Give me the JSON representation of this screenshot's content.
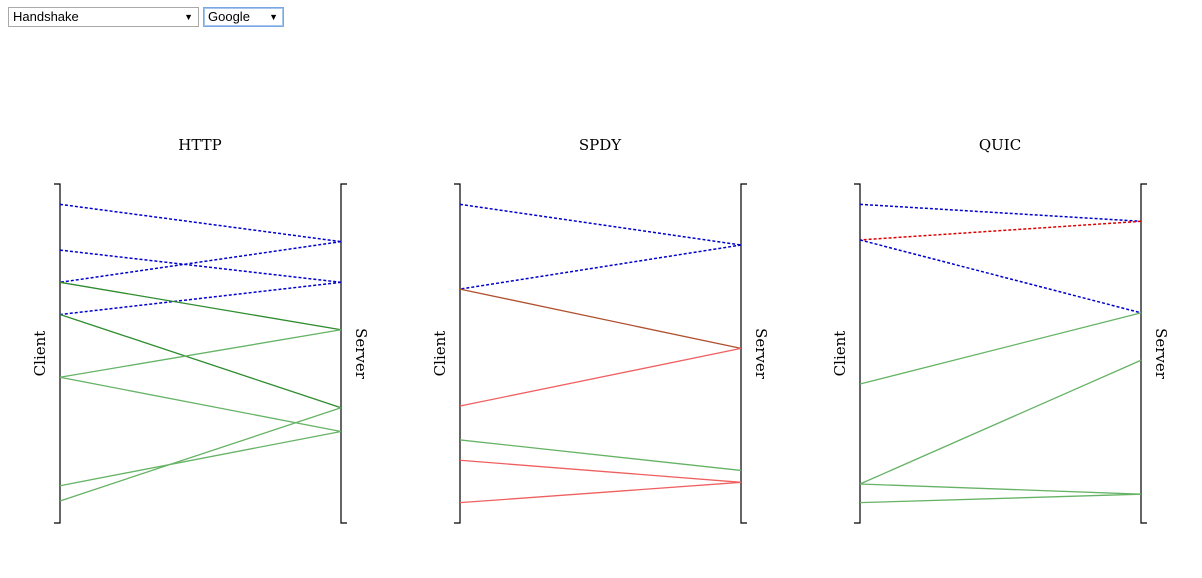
{
  "controls": {
    "view_select": {
      "value": "Handshake"
    },
    "site_select": {
      "value": "Google"
    }
  },
  "panels": [
    {
      "title": "HTTP",
      "client_label": "Client",
      "server_label": "Server",
      "messages": [
        {
          "from": "client",
          "t0": 0.06,
          "t1": 0.17,
          "kind": "handshake",
          "color": "#0000cc"
        },
        {
          "from": "client",
          "t0": 0.195,
          "t1": 0.29,
          "kind": "handshake",
          "color": "#0000cc"
        },
        {
          "from": "server",
          "t0": 0.17,
          "t1": 0.29,
          "kind": "handshake",
          "color": "#0000cc"
        },
        {
          "from": "server",
          "t0": 0.29,
          "t1": 0.385,
          "kind": "handshake",
          "color": "#0000cc"
        },
        {
          "from": "client",
          "t0": 0.29,
          "t1": 0.43,
          "kind": "data",
          "color": "#2e8b2e"
        },
        {
          "from": "client",
          "t0": 0.385,
          "t1": 0.66,
          "kind": "data",
          "color": "#2e8b2e"
        },
        {
          "from": "server",
          "t0": 0.43,
          "t1": 0.57,
          "kind": "data",
          "color": "#66b366"
        },
        {
          "from": "client",
          "t0": 0.57,
          "t1": 0.73,
          "kind": "data",
          "color": "#66b366"
        },
        {
          "from": "server",
          "t0": 0.66,
          "t1": 0.935,
          "kind": "data",
          "color": "#66b366"
        },
        {
          "from": "server",
          "t0": 0.73,
          "t1": 0.89,
          "kind": "data",
          "color": "#66b366"
        }
      ]
    },
    {
      "title": "SPDY",
      "client_label": "Client",
      "server_label": "Server",
      "messages": [
        {
          "from": "client",
          "t0": 0.06,
          "t1": 0.18,
          "kind": "handshake",
          "color": "#0000cc"
        },
        {
          "from": "server",
          "t0": 0.18,
          "t1": 0.31,
          "kind": "handshake",
          "color": "#0000cc"
        },
        {
          "from": "client",
          "t0": 0.31,
          "t1": 0.485,
          "kind": "data",
          "color": "#b05030"
        },
        {
          "from": "server",
          "t0": 0.485,
          "t1": 0.655,
          "kind": "data",
          "color": "#f06060"
        },
        {
          "from": "client",
          "t0": 0.755,
          "t1": 0.845,
          "kind": "data",
          "color": "#66b366"
        },
        {
          "from": "client",
          "t0": 0.815,
          "t1": 0.88,
          "kind": "data",
          "color": "#f06060"
        },
        {
          "from": "server",
          "t0": 0.88,
          "t1": 0.94,
          "kind": "data",
          "color": "#f06060"
        }
      ]
    },
    {
      "title": "QUIC",
      "client_label": "Client",
      "server_label": "Server",
      "messages": [
        {
          "from": "client",
          "t0": 0.06,
          "t1": 0.11,
          "kind": "handshake",
          "color": "#0000cc"
        },
        {
          "from": "server",
          "t0": 0.11,
          "t1": 0.165,
          "kind": "handshake",
          "color": "#dd0000"
        },
        {
          "from": "client",
          "t0": 0.165,
          "t1": 0.38,
          "kind": "handshake",
          "color": "#0000cc"
        },
        {
          "from": "server",
          "t0": 0.38,
          "t1": 0.59,
          "kind": "data",
          "color": "#66b366"
        },
        {
          "from": "server",
          "t0": 0.52,
          "t1": 0.885,
          "kind": "data",
          "color": "#66b366"
        },
        {
          "from": "client",
          "t0": 0.885,
          "t1": 0.915,
          "kind": "data",
          "color": "#66b366"
        },
        {
          "from": "server",
          "t0": 0.915,
          "t1": 0.94,
          "kind": "data",
          "color": "#66b366"
        }
      ]
    }
  ]
}
